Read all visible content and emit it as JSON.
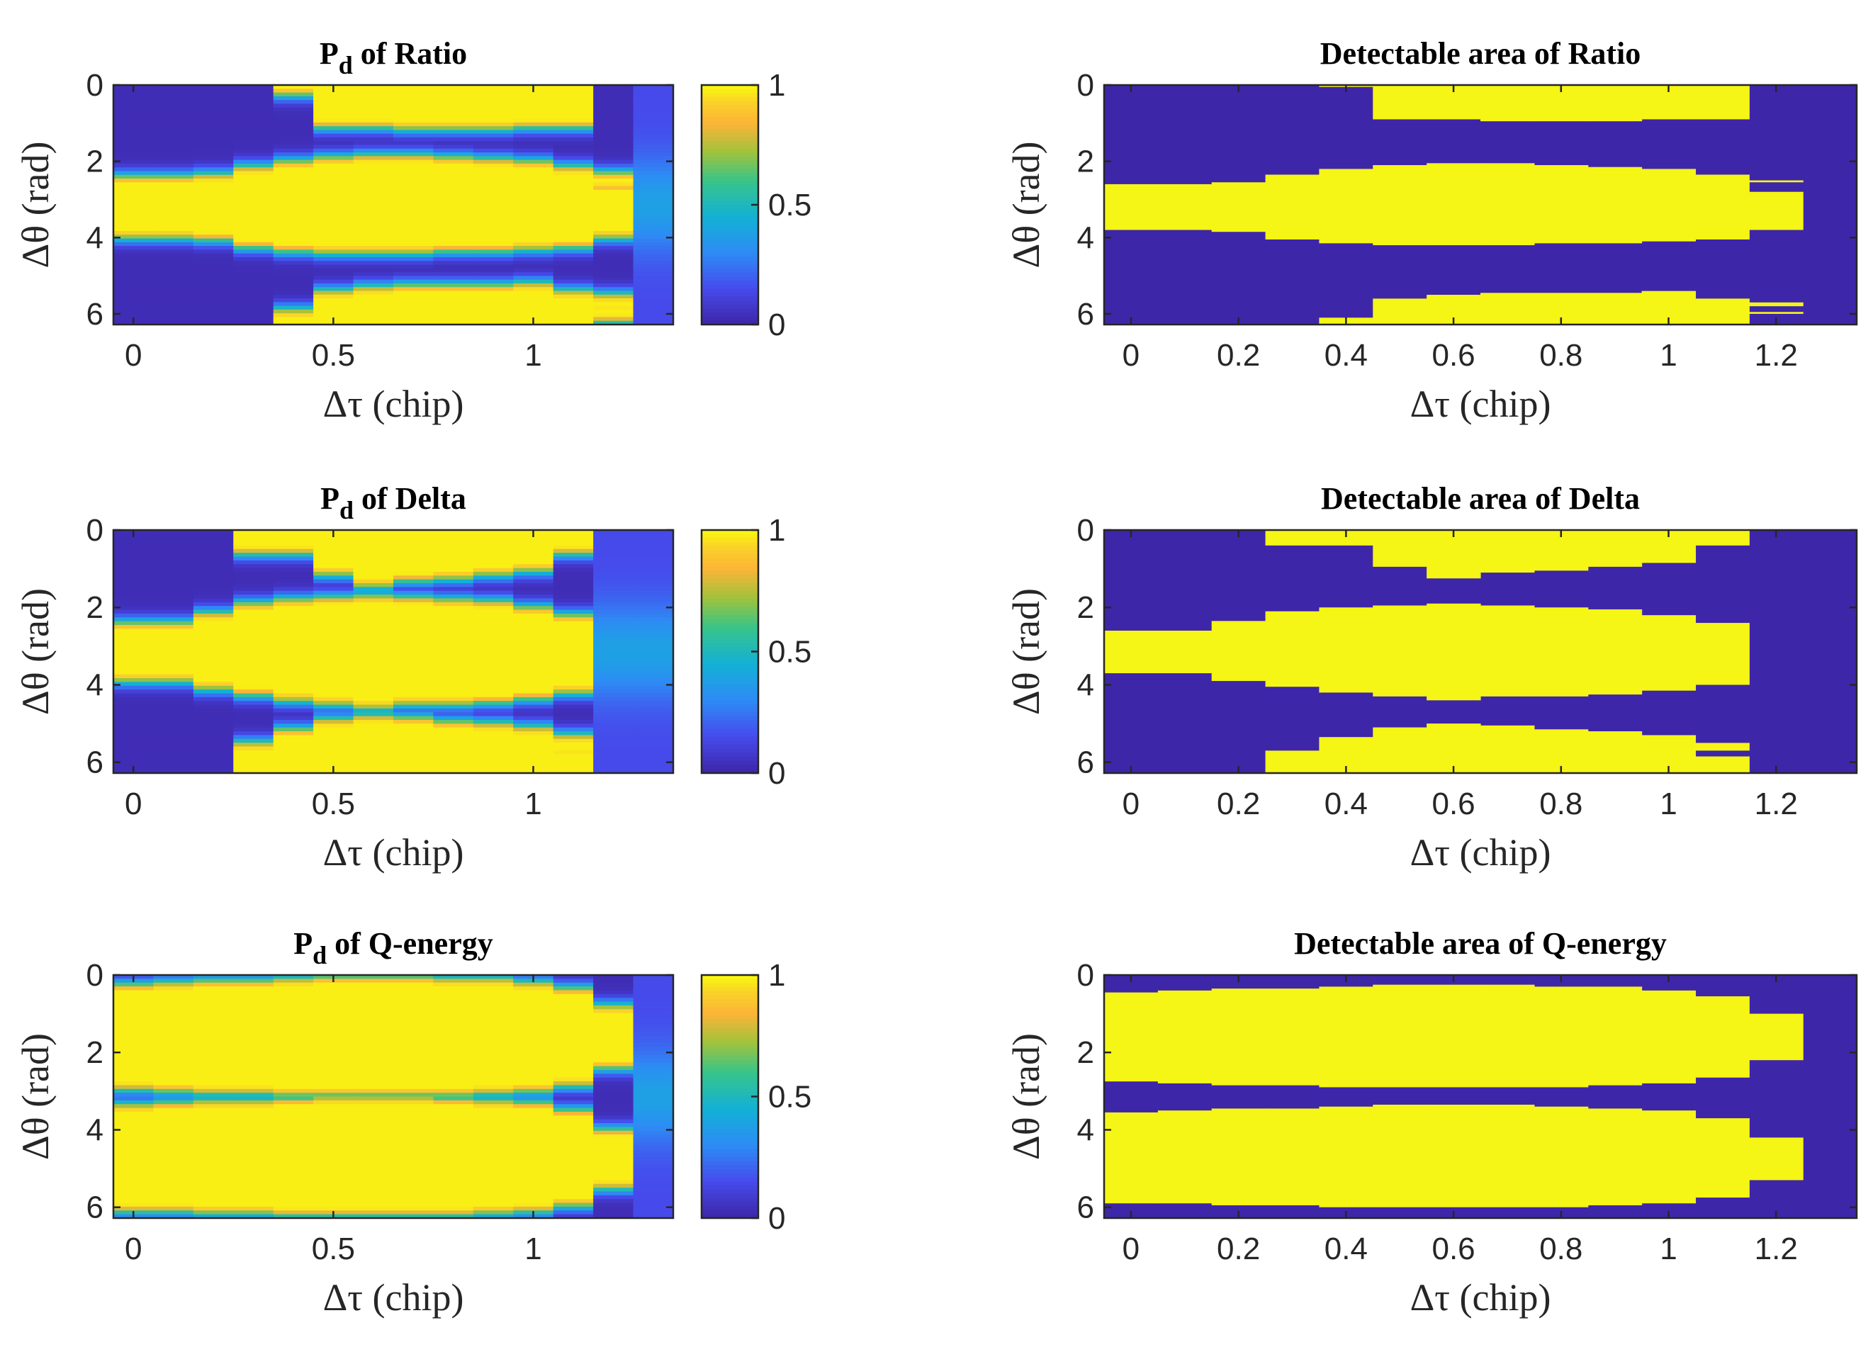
{
  "chart_data": [
    {
      "id": "pd-ratio",
      "type": "heatmap",
      "kind": "prob",
      "title_main": "P",
      "title_sub": "d",
      "title_rest": " of Ratio",
      "xlabel": "Δτ (chip)",
      "ylabel": "Δθ (rad)",
      "xlim": [
        -0.05,
        1.35
      ],
      "ylim": [
        0,
        6.28
      ],
      "xticks": [
        "0",
        "0.5",
        "1"
      ],
      "yticks": [
        "0",
        "2",
        "4",
        "6"
      ],
      "colorbar_ticks": [
        "0",
        "0.5",
        "1"
      ],
      "metric": "ratio"
    },
    {
      "id": "area-ratio",
      "type": "heatmap",
      "kind": "binary",
      "title_main": "Detectable area of Ratio",
      "xlabel": "Δτ (chip)",
      "ylabel": "Δθ (rad)",
      "xlim": [
        -0.05,
        1.35
      ],
      "ylim": [
        0,
        6.28
      ],
      "xticks": [
        "0",
        "0.2",
        "0.4",
        "0.6",
        "0.8",
        "1",
        "1.2"
      ],
      "yticks": [
        "0",
        "2",
        "4",
        "6"
      ],
      "metric": "ratio"
    },
    {
      "id": "pd-delta",
      "type": "heatmap",
      "kind": "prob",
      "title_main": "P",
      "title_sub": "d",
      "title_rest": " of Delta",
      "xlabel": "Δτ (chip)",
      "ylabel": "Δθ (rad)",
      "xlim": [
        -0.05,
        1.35
      ],
      "ylim": [
        0,
        6.28
      ],
      "xticks": [
        "0",
        "0.5",
        "1"
      ],
      "yticks": [
        "0",
        "2",
        "4",
        "6"
      ],
      "colorbar_ticks": [
        "0",
        "0.5",
        "1"
      ],
      "metric": "delta"
    },
    {
      "id": "area-delta",
      "type": "heatmap",
      "kind": "binary",
      "title_main": "Detectable area of Delta",
      "xlabel": "Δτ (chip)",
      "ylabel": "Δθ (rad)",
      "xlim": [
        -0.05,
        1.35
      ],
      "ylim": [
        0,
        6.28
      ],
      "xticks": [
        "0",
        "0.2",
        "0.4",
        "0.6",
        "0.8",
        "1",
        "1.2"
      ],
      "yticks": [
        "0",
        "2",
        "4",
        "6"
      ],
      "metric": "delta"
    },
    {
      "id": "pd-qenergy",
      "type": "heatmap",
      "kind": "prob",
      "title_main": "P",
      "title_sub": "d",
      "title_rest": " of Q-energy",
      "xlabel": "Δτ (chip)",
      "ylabel": "Δθ (rad)",
      "xlim": [
        -0.05,
        1.35
      ],
      "ylim": [
        0,
        6.28
      ],
      "xticks": [
        "0",
        "0.5",
        "1"
      ],
      "yticks": [
        "0",
        "2",
        "4",
        "6"
      ],
      "colorbar_ticks": [
        "0",
        "0.5",
        "1"
      ],
      "metric": "qenergy"
    },
    {
      "id": "area-qenergy",
      "type": "heatmap",
      "kind": "binary",
      "title_main": "Detectable area of Q-energy",
      "xlabel": "Δτ (chip)",
      "ylabel": "Δθ (rad)",
      "xlim": [
        -0.05,
        1.35
      ],
      "ylim": [
        0,
        6.28
      ],
      "xticks": [
        "0",
        "0.2",
        "0.4",
        "0.6",
        "0.8",
        "1",
        "1.2"
      ],
      "yticks": [
        "0",
        "2",
        "4",
        "6"
      ],
      "metric": "qenergy"
    }
  ],
  "tau_columns": [
    0,
    0.1,
    0.2,
    0.3,
    0.4,
    0.5,
    0.6,
    0.7,
    0.8,
    0.9,
    1.0,
    1.1,
    1.2,
    1.3
  ],
  "detectable_regions": {
    "ratio": [
      {
        "bands": [
          [
            2.6,
            3.8
          ]
        ]
      },
      {
        "bands": [
          [
            2.6,
            3.8
          ]
        ]
      },
      {
        "bands": [
          [
            2.55,
            3.85
          ]
        ]
      },
      {
        "bands": [
          [
            2.35,
            4.05
          ]
        ]
      },
      {
        "bands": [
          [
            0,
            0.05
          ],
          [
            2.2,
            4.15
          ],
          [
            6.1,
            6.28
          ]
        ]
      },
      {
        "bands": [
          [
            0,
            0.9
          ],
          [
            2.1,
            4.2
          ],
          [
            5.6,
            6.28
          ]
        ]
      },
      {
        "bands": [
          [
            0,
            0.9
          ],
          [
            2.05,
            4.2
          ],
          [
            5.5,
            6.28
          ]
        ]
      },
      {
        "bands": [
          [
            0,
            0.95
          ],
          [
            2.05,
            4.2
          ],
          [
            5.45,
            6.28
          ]
        ]
      },
      {
        "bands": [
          [
            0,
            0.95
          ],
          [
            2.1,
            4.15
          ],
          [
            5.45,
            6.28
          ]
        ]
      },
      {
        "bands": [
          [
            0,
            0.95
          ],
          [
            2.15,
            4.15
          ],
          [
            5.45,
            6.28
          ]
        ]
      },
      {
        "bands": [
          [
            0,
            0.9
          ],
          [
            2.2,
            4.1
          ],
          [
            5.4,
            6.28
          ]
        ]
      },
      {
        "bands": [
          [
            0,
            0.9
          ],
          [
            2.35,
            4.05
          ],
          [
            5.6,
            6.28
          ]
        ]
      },
      {
        "bands": [
          [
            2.5,
            2.55
          ],
          [
            2.8,
            3.8
          ],
          [
            5.7,
            5.8
          ],
          [
            5.95,
            6.0
          ]
        ]
      },
      {
        "bands": []
      }
    ],
    "delta": [
      {
        "bands": [
          [
            2.6,
            3.7
          ]
        ]
      },
      {
        "bands": [
          [
            2.6,
            3.7
          ]
        ]
      },
      {
        "bands": [
          [
            2.35,
            3.9
          ]
        ]
      },
      {
        "bands": [
          [
            0,
            0.4
          ],
          [
            2.1,
            4.05
          ],
          [
            5.7,
            6.28
          ]
        ]
      },
      {
        "bands": [
          [
            0,
            0.4
          ],
          [
            2.0,
            4.2
          ],
          [
            5.35,
            6.28
          ]
        ]
      },
      {
        "bands": [
          [
            0,
            0.95
          ],
          [
            1.95,
            4.3
          ],
          [
            5.1,
            6.28
          ]
        ]
      },
      {
        "bands": [
          [
            0,
            1.25
          ],
          [
            1.9,
            4.4
          ],
          [
            5.0,
            6.28
          ]
        ]
      },
      {
        "bands": [
          [
            0,
            1.1
          ],
          [
            1.95,
            4.3
          ],
          [
            5.05,
            6.28
          ]
        ]
      },
      {
        "bands": [
          [
            0,
            1.05
          ],
          [
            2.0,
            4.3
          ],
          [
            5.15,
            6.28
          ]
        ]
      },
      {
        "bands": [
          [
            0,
            0.95
          ],
          [
            2.05,
            4.25
          ],
          [
            5.2,
            6.28
          ]
        ]
      },
      {
        "bands": [
          [
            0,
            0.85
          ],
          [
            2.2,
            4.15
          ],
          [
            5.3,
            6.28
          ]
        ]
      },
      {
        "bands": [
          [
            0,
            0.4
          ],
          [
            2.4,
            4.0
          ],
          [
            5.5,
            5.7
          ],
          [
            5.85,
            6.28
          ]
        ]
      },
      {
        "bands": []
      },
      {
        "bands": []
      }
    ],
    "qenergy": [
      {
        "bands": [
          [
            0.45,
            2.75
          ],
          [
            3.55,
            5.9
          ]
        ]
      },
      {
        "bands": [
          [
            0.4,
            2.8
          ],
          [
            3.5,
            5.9
          ]
        ]
      },
      {
        "bands": [
          [
            0.35,
            2.85
          ],
          [
            3.45,
            5.95
          ]
        ]
      },
      {
        "bands": [
          [
            0.35,
            2.85
          ],
          [
            3.45,
            5.95
          ]
        ]
      },
      {
        "bands": [
          [
            0.3,
            2.9
          ],
          [
            3.4,
            6.0
          ]
        ]
      },
      {
        "bands": [
          [
            0.25,
            2.9
          ],
          [
            3.35,
            6.0
          ]
        ]
      },
      {
        "bands": [
          [
            0.25,
            2.9
          ],
          [
            3.35,
            6.0
          ]
        ]
      },
      {
        "bands": [
          [
            0.25,
            2.9
          ],
          [
            3.35,
            6.0
          ]
        ]
      },
      {
        "bands": [
          [
            0.3,
            2.9
          ],
          [
            3.4,
            6.0
          ]
        ]
      },
      {
        "bands": [
          [
            0.3,
            2.85
          ],
          [
            3.45,
            5.95
          ]
        ]
      },
      {
        "bands": [
          [
            0.4,
            2.8
          ],
          [
            3.5,
            5.9
          ]
        ]
      },
      {
        "bands": [
          [
            0.55,
            2.65
          ],
          [
            3.7,
            5.75
          ]
        ]
      },
      {
        "bands": [
          [
            1.0,
            2.2
          ],
          [
            4.2,
            5.3
          ]
        ]
      },
      {
        "bands": []
      }
    ]
  },
  "colors": {
    "low": "#3e26a8",
    "mid": "#2ab0c4",
    "high": "#f9fb0e",
    "binary_off": "#3e26a8",
    "binary_on": "#f5f516"
  }
}
